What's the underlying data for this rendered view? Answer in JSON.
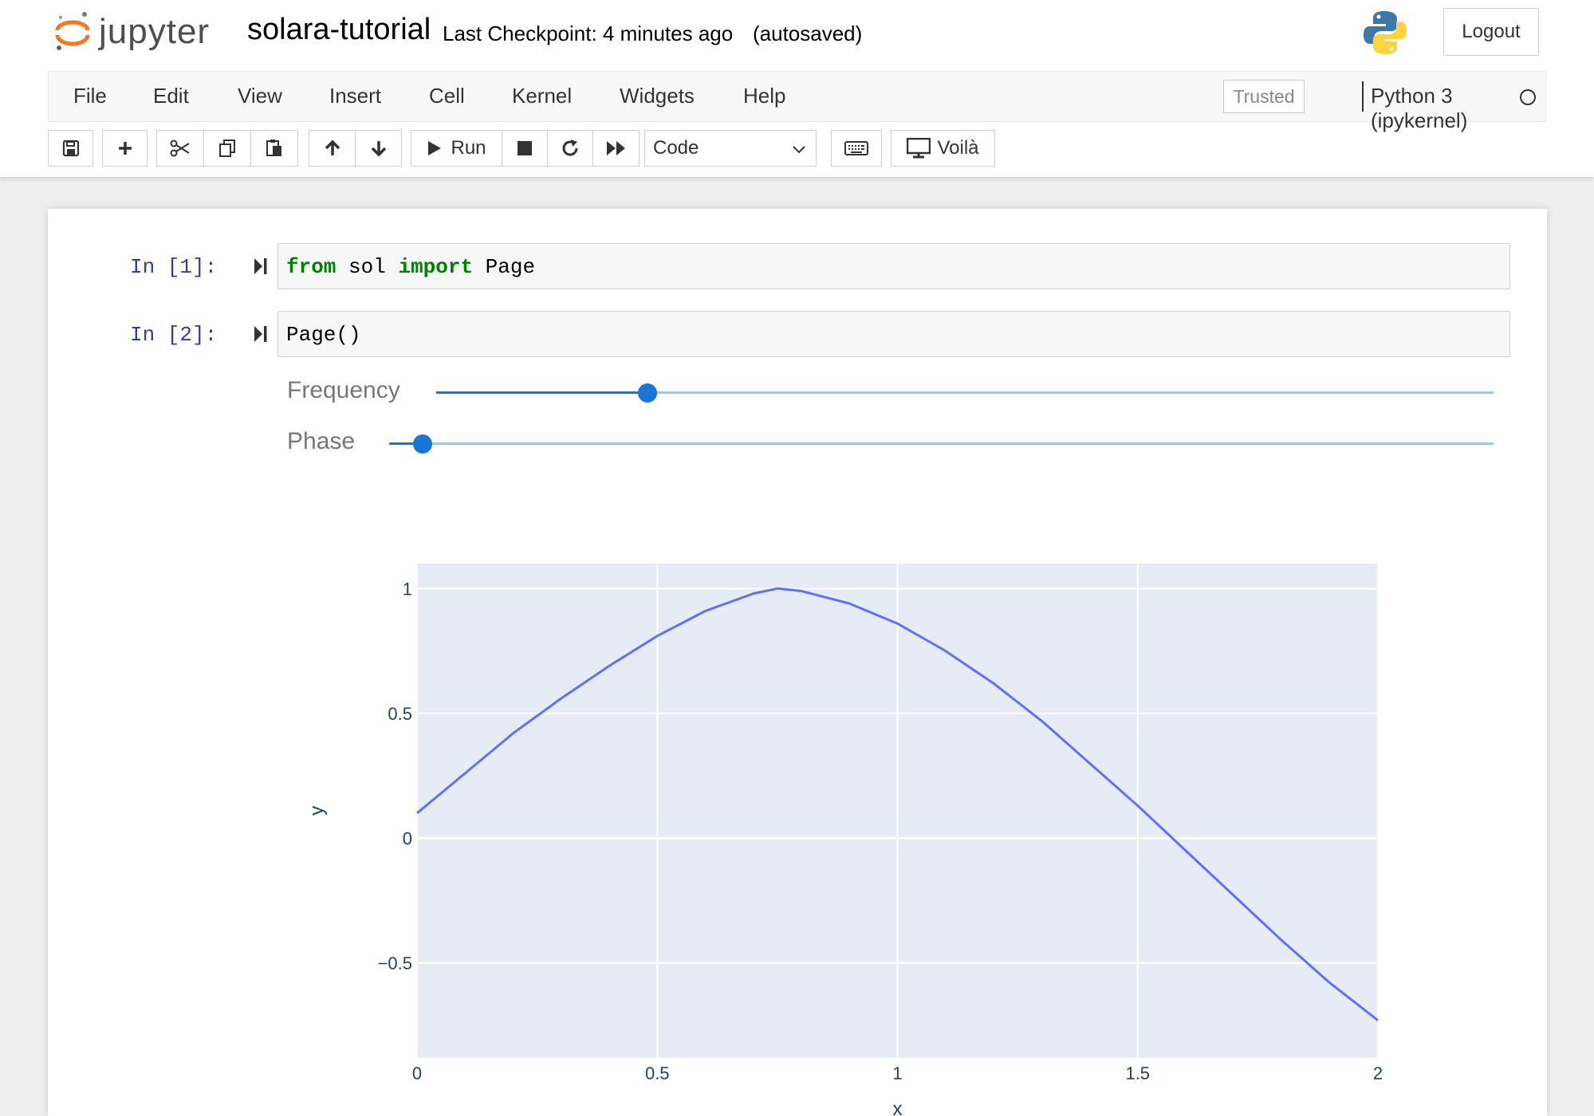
{
  "header": {
    "logo_text": "jupyter",
    "notebook_title": "solara-tutorial",
    "checkpoint": "Last Checkpoint: 4 minutes ago",
    "autosave": "(autosaved)",
    "logout_label": "Logout"
  },
  "menu": {
    "items": [
      "File",
      "Edit",
      "View",
      "Insert",
      "Cell",
      "Kernel",
      "Widgets",
      "Help"
    ],
    "trusted_label": "Trusted",
    "kernel_name": "Python 3 (ipykernel)"
  },
  "toolbar": {
    "run_label": "Run",
    "cell_type": "Code",
    "voila_label": "Voilà",
    "icons": [
      "save-icon",
      "plus-icon",
      "scissors-icon",
      "copy-icon",
      "paste-icon",
      "arrow-up-icon",
      "arrow-down-icon",
      "play-icon",
      "stop-icon",
      "restart-icon",
      "fast-forward-icon",
      "keyboard-icon",
      "monitor-icon"
    ]
  },
  "cells": [
    {
      "prompt": "In [1]:",
      "tokens": [
        {
          "text": "from",
          "kind": "keyword"
        },
        {
          "text": " sol ",
          "kind": "name"
        },
        {
          "text": "import",
          "kind": "keyword"
        },
        {
          "text": " Page",
          "kind": "name"
        }
      ]
    },
    {
      "prompt": "In [2]:",
      "tokens": [
        {
          "text": "Page()",
          "kind": "name"
        }
      ]
    }
  ],
  "widgets": {
    "sliders": [
      {
        "label": "Frequency",
        "fraction": 0.2
      },
      {
        "label": "Phase",
        "fraction": 0.03
      }
    ]
  },
  "chart_data": {
    "type": "line",
    "xlabel": "x",
    "ylabel": "y",
    "xlim": [
      0,
      2
    ],
    "ylim": [
      -0.88,
      1.1
    ],
    "xticks": [
      0,
      0.5,
      1,
      1.5,
      2
    ],
    "xtick_labels": [
      "0",
      "0.5",
      "1",
      "1.5",
      "2"
    ],
    "yticks": [
      1,
      0.5,
      0,
      -0.5
    ],
    "ytick_labels": [
      "1",
      "0.5",
      "0",
      "−0.5"
    ],
    "grid": true,
    "colors": {
      "plot_bg": "#e5ecf6",
      "line": "#636efa",
      "grid": "#ffffff",
      "tick_text": "#2a3f5f"
    },
    "series": [
      {
        "x": [
          0,
          0.1,
          0.2,
          0.3,
          0.4,
          0.5,
          0.6,
          0.7,
          0.75,
          0.8,
          0.9,
          1.0,
          1.1,
          1.2,
          1.3,
          1.4,
          1.5,
          1.6,
          1.7,
          1.8,
          1.9,
          2.0
        ],
        "values": [
          0.1,
          0.26,
          0.42,
          0.56,
          0.69,
          0.81,
          0.91,
          0.98,
          1.0,
          0.99,
          0.94,
          0.86,
          0.75,
          0.62,
          0.47,
          0.3,
          0.13,
          -0.05,
          -0.23,
          -0.41,
          -0.58,
          -0.73
        ]
      }
    ]
  }
}
